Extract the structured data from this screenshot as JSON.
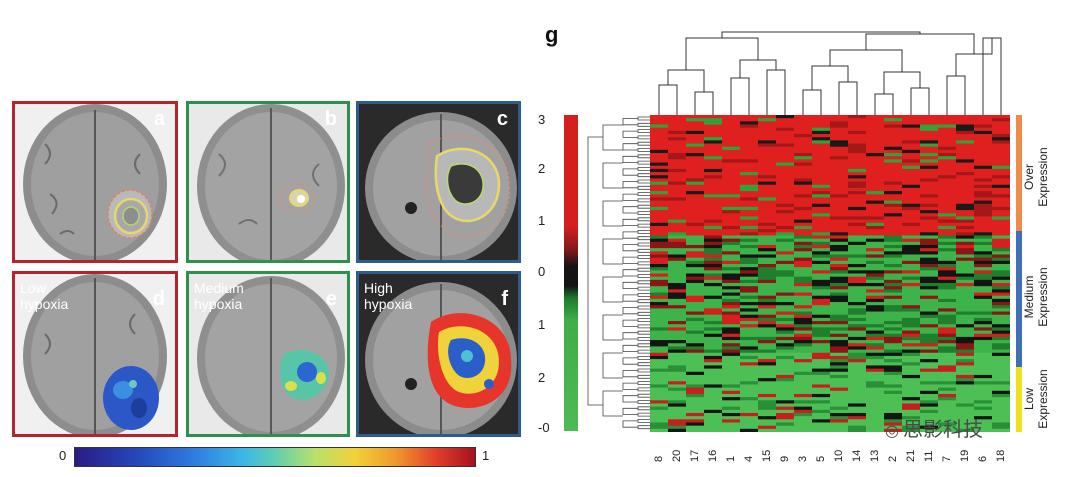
{
  "panels": [
    {
      "letter": "a",
      "hypoxia_text": ""
    },
    {
      "letter": "b",
      "hypoxia_text": ""
    },
    {
      "letter": "c",
      "hypoxia_text": ""
    },
    {
      "letter": "d",
      "hypoxia_text": "Low\nhypoxia"
    },
    {
      "letter": "e",
      "hypoxia_text": "Medium\nhypoxia"
    },
    {
      "letter": "f",
      "hypoxia_text": "High\nhypoxia"
    }
  ],
  "colorbar": {
    "min_label": "0",
    "max_label": "1"
  },
  "heatmap": {
    "panel_letter": "g",
    "scale_ticks": [
      "3",
      "2",
      "1",
      "0",
      "1",
      "2",
      "-0"
    ],
    "groups": [
      "Over\nExpression",
      "Medium\nExpression",
      "Low\nExpression"
    ],
    "group_colors": [
      "#f08a4b",
      "#3f6fb6",
      "#f2e01a"
    ],
    "column_labels": [
      "8",
      "20",
      "17",
      "16",
      "1",
      "4",
      "15",
      "9",
      "3",
      "5",
      "10",
      "14",
      "13",
      "2",
      "21",
      "11",
      "7",
      "19",
      "6",
      "18"
    ]
  },
  "watermark": "思影科技"
}
